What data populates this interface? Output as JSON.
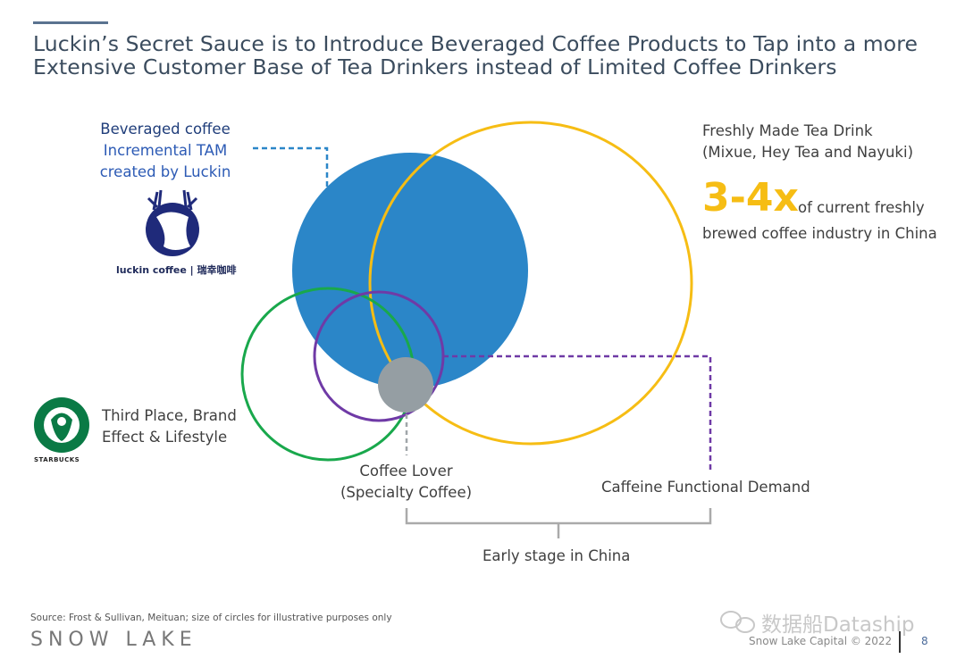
{
  "title": {
    "line1": "Luckin’s Secret Sauce is to Introduce Beveraged Coffee Products to Tap into a more",
    "line2": "Extensive Customer Base of Tea Drinkers instead of Limited Coffee Drinkers"
  },
  "beverage_label": {
    "line1": "Beveraged coffee",
    "line2": "Incremental TAM",
    "line3": "created by Luckin"
  },
  "luckin_logo": {
    "text": "luckin coffee",
    "chinese": "瑞幸咖啡",
    "icon": "luckin-deer-logo"
  },
  "tea_label": {
    "line1": "Freshly Made Tea Drink",
    "line2": "(Mixue, Hey Tea and Nayuki)"
  },
  "multiplier": {
    "value": "3-4x",
    "desc1": "of current freshly",
    "desc2": "brewed coffee industry in China"
  },
  "starbucks_logo": {
    "text": "STARBUCKS",
    "icon": "starbucks-siren-logo"
  },
  "third_place": {
    "line1": "Third Place, Brand",
    "line2": "Effect & Lifestyle"
  },
  "coffee_lover": {
    "line1": "Coffee Lover",
    "line2": "(Specialty Coffee)"
  },
  "caffeine": "Caffeine Functional Demand",
  "early_stage": "Early stage in China",
  "footer": {
    "source": "Source: Frost & Sullivan, Meituan; size of circles for illustrative purposes only",
    "brand": "SNOW LAKE",
    "copyright": "Snow Lake Capital © 2022",
    "page": "8",
    "watermark": "数据船Dataship"
  },
  "colors": {
    "beverage_blue": "#2b86c8",
    "tea_yellow": "#f6bd14",
    "third_place_green": "#19a84c",
    "caffeine_purple": "#6f3aa6",
    "coffee_lover_gray": "#959ea3"
  }
}
